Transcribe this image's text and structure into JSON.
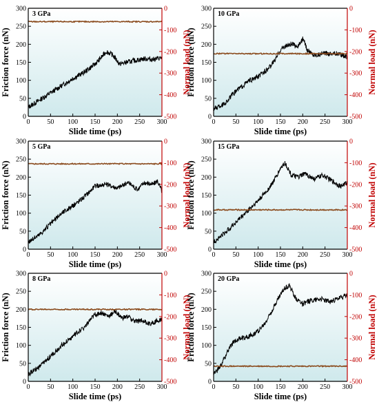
{
  "colors": {
    "friction": "#000000",
    "normal_load": "#8a4a1c",
    "right_axis": "#c00000",
    "plot_bg_top": "#ffffff",
    "plot_bg_bottom": "#cfe9ec",
    "label_highlight": "#f9d6ea"
  },
  "chart_data": [
    {
      "type": "line",
      "panel_label": "3 GPa",
      "xlabel": "Slide time (ps)",
      "ylabel": "Friction force (nN)",
      "y2label": "Normal load (nN)",
      "xlim": [
        0,
        300
      ],
      "ylim": [
        0,
        300
      ],
      "y2lim": [
        -500,
        0
      ],
      "xticks": [
        0,
        50,
        100,
        150,
        200,
        250,
        300
      ],
      "yticks": [
        0,
        50,
        100,
        150,
        200,
        250,
        300
      ],
      "y2ticks": [
        0,
        -100,
        -200,
        -300,
        -400,
        -500
      ],
      "series": [
        {
          "axis": "left",
          "x": [
            0,
            25,
            50,
            75,
            100,
            125,
            150,
            165,
            175,
            190,
            205,
            220,
            240,
            260,
            280,
            300
          ],
          "values": [
            25,
            45,
            65,
            85,
            105,
            122,
            145,
            165,
            180,
            170,
            145,
            150,
            155,
            160,
            158,
            163
          ]
        },
        {
          "axis": "right",
          "x": [
            0,
            300
          ],
          "values": [
            -62,
            -62
          ]
        }
      ]
    },
    {
      "type": "line",
      "panel_label": "10 GPa",
      "xlabel": "Slide time (ps)",
      "ylabel": "Friction force (nN)",
      "y2label": "Normal load (nN)",
      "xlim": [
        0,
        300
      ],
      "ylim": [
        0,
        300
      ],
      "y2lim": [
        -500,
        0
      ],
      "xticks": [
        0,
        50,
        100,
        150,
        200,
        250,
        300
      ],
      "yticks": [
        0,
        50,
        100,
        150,
        200,
        250,
        300
      ],
      "y2ticks": [
        0,
        -100,
        -200,
        -300,
        -400,
        -500
      ],
      "series": [
        {
          "axis": "left",
          "x": [
            0,
            25,
            50,
            75,
            100,
            125,
            140,
            150,
            160,
            175,
            190,
            200,
            210,
            225,
            250,
            275,
            300
          ],
          "values": [
            20,
            35,
            70,
            95,
            110,
            135,
            160,
            185,
            195,
            200,
            195,
            215,
            185,
            170,
            175,
            175,
            165
          ]
        },
        {
          "axis": "right",
          "x": [
            0,
            300
          ],
          "values": [
            -210,
            -210
          ]
        }
      ]
    },
    {
      "type": "line",
      "panel_label": "5 GPa",
      "xlabel": "Slide time (ps)",
      "ylabel": "Friction force (nN)",
      "y2label": "Normal load (nN)",
      "xlim": [
        0,
        300
      ],
      "ylim": [
        0,
        300
      ],
      "y2lim": [
        -500,
        0
      ],
      "xticks": [
        0,
        50,
        100,
        150,
        200,
        250,
        300
      ],
      "yticks": [
        0,
        50,
        100,
        150,
        200,
        250,
        300
      ],
      "y2ticks": [
        0,
        -100,
        -200,
        -300,
        -400,
        -500
      ],
      "series": [
        {
          "axis": "left",
          "x": [
            0,
            25,
            50,
            75,
            100,
            125,
            150,
            175,
            200,
            225,
            245,
            260,
            280,
            290,
            300
          ],
          "values": [
            20,
            40,
            70,
            100,
            120,
            145,
            175,
            180,
            170,
            185,
            165,
            185,
            180,
            190,
            160
          ]
        },
        {
          "axis": "right",
          "x": [
            0,
            300
          ],
          "values": [
            -105,
            -105
          ]
        }
      ]
    },
    {
      "type": "line",
      "panel_label": "15 GPa",
      "xlabel": "Slide time (ps)",
      "ylabel": "Friction force (nN)",
      "y2label": "Normal load (nN)",
      "xlim": [
        0,
        300
      ],
      "ylim": [
        0,
        300
      ],
      "y2lim": [
        -500,
        0
      ],
      "xticks": [
        0,
        50,
        100,
        150,
        200,
        250,
        300
      ],
      "yticks": [
        0,
        50,
        100,
        150,
        200,
        250,
        300
      ],
      "y2ticks": [
        0,
        -100,
        -200,
        -300,
        -400,
        -500
      ],
      "series": [
        {
          "axis": "left",
          "x": [
            0,
            25,
            50,
            75,
            100,
            125,
            140,
            150,
            160,
            175,
            190,
            205,
            225,
            245,
            265,
            285,
            300
          ],
          "values": [
            20,
            45,
            75,
            105,
            135,
            170,
            200,
            225,
            240,
            205,
            200,
            210,
            195,
            205,
            190,
            175,
            185
          ]
        },
        {
          "axis": "right",
          "x": [
            0,
            300
          ],
          "values": [
            -318,
            -318
          ]
        }
      ]
    },
    {
      "type": "line",
      "panel_label": "8 GPa",
      "xlabel": "Slide time (ps)",
      "ylabel": "Friction force (nN)",
      "y2label": "Normal load (nN)",
      "xlim": [
        0,
        300
      ],
      "ylim": [
        0,
        300
      ],
      "y2lim": [
        -500,
        0
      ],
      "xticks": [
        0,
        50,
        100,
        150,
        200,
        250,
        300
      ],
      "yticks": [
        0,
        50,
        100,
        150,
        200,
        250,
        300
      ],
      "y2ticks": [
        0,
        -100,
        -200,
        -300,
        -400,
        -500
      ],
      "series": [
        {
          "axis": "left",
          "x": [
            0,
            25,
            50,
            75,
            100,
            125,
            150,
            165,
            180,
            195,
            210,
            225,
            240,
            255,
            270,
            285,
            300
          ],
          "values": [
            20,
            40,
            70,
            100,
            125,
            150,
            185,
            190,
            180,
            195,
            175,
            180,
            165,
            170,
            160,
            165,
            175
          ]
        },
        {
          "axis": "right",
          "x": [
            0,
            300
          ],
          "values": [
            -167,
            -167
          ]
        }
      ]
    },
    {
      "type": "line",
      "panel_label": "20 GPa",
      "xlabel": "Slide time (ps)",
      "ylabel": "Friction force (nN)",
      "y2label": "Normal load (nN)",
      "xlim": [
        0,
        300
      ],
      "ylim": [
        0,
        300
      ],
      "y2lim": [
        -500,
        0
      ],
      "xticks": [
        0,
        50,
        100,
        150,
        200,
        250,
        300
      ],
      "yticks": [
        0,
        50,
        100,
        150,
        200,
        250,
        300
      ],
      "y2ticks": [
        0,
        -100,
        -200,
        -300,
        -400,
        -500
      ],
      "series": [
        {
          "axis": "left",
          "x": [
            0,
            15,
            30,
            45,
            60,
            80,
            100,
            115,
            130,
            145,
            160,
            170,
            185,
            200,
            220,
            240,
            260,
            280,
            300
          ],
          "values": [
            20,
            40,
            80,
            110,
            120,
            125,
            140,
            160,
            195,
            230,
            260,
            265,
            230,
            215,
            225,
            230,
            220,
            230,
            240
          ]
        },
        {
          "axis": "right",
          "x": [
            0,
            300
          ],
          "values": [
            -430,
            -430
          ]
        }
      ]
    }
  ]
}
